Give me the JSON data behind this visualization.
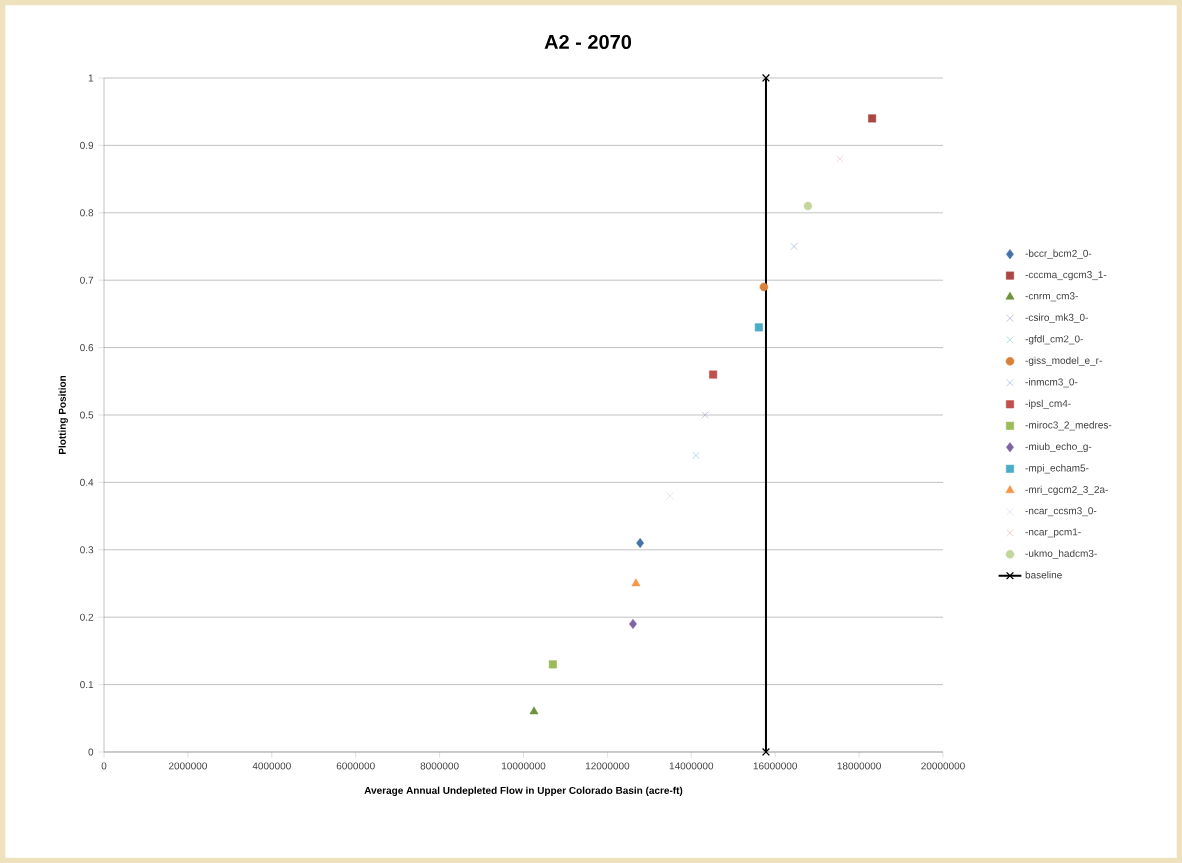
{
  "chart_data": {
    "type": "scatter",
    "title": "A2 - 2070",
    "xlabel": "Average Annual Undepleted Flow in Upper Colorado Basin (acre-ft)",
    "ylabel": "Plotting Position",
    "xlim": [
      0,
      20000000
    ],
    "xticks": [
      0,
      2000000,
      4000000,
      6000000,
      8000000,
      10000000,
      12000000,
      14000000,
      16000000,
      18000000,
      20000000
    ],
    "ylim": [
      0,
      1
    ],
    "yticks": [
      0,
      0.1,
      0.2,
      0.3,
      0.4,
      0.5,
      0.6,
      0.7,
      0.8,
      0.9,
      1
    ],
    "grid": "y",
    "legend": "right",
    "series": [
      {
        "name": "-bccr_bcm2_0-",
        "color": "#4572a7",
        "marker": "diamond",
        "x": [
          12780000
        ],
        "values": [
          0.31
        ]
      },
      {
        "name": "-cccma_cgcm3_1-",
        "color": "#aa4643",
        "marker": "square",
        "x": [
          18310000
        ],
        "values": [
          0.94
        ]
      },
      {
        "name": "-cnrm_cm3-",
        "color": "#71913c",
        "marker": "triangle",
        "x": [
          10250000
        ],
        "values": [
          0.06
        ]
      },
      {
        "name": "-csiro_mk3_0-",
        "color": "#9d8fbf",
        "marker": "cross",
        "x": [
          14330000
        ],
        "values": [
          0.5
        ]
      },
      {
        "name": "-gfdl_cm2_0-",
        "color": "#6fb6cb",
        "marker": "cross",
        "x": [
          14110000
        ],
        "values": [
          0.44
        ]
      },
      {
        "name": "-giss_model_e_r-",
        "color": "#d9803a",
        "marker": "circle",
        "x": [
          15730000
        ],
        "values": [
          0.69
        ]
      },
      {
        "name": "-inmcm3_0-",
        "color": "#7f9fd6",
        "marker": "cross",
        "x": [
          16450000
        ],
        "values": [
          0.75
        ]
      },
      {
        "name": "-ipsl_cm4-",
        "color": "#c0504d",
        "marker": "square",
        "x": [
          14520000
        ],
        "values": [
          0.56
        ]
      },
      {
        "name": "-miroc3_2_medres-",
        "color": "#9bbb59",
        "marker": "square",
        "x": [
          10700000
        ],
        "values": [
          0.13
        ]
      },
      {
        "name": "-miub_echo_g-",
        "color": "#8064a2",
        "marker": "diamond",
        "x": [
          12610000
        ],
        "values": [
          0.19
        ]
      },
      {
        "name": "-mpi_echam5-",
        "color": "#4bacc6",
        "marker": "square",
        "x": [
          15610000
        ],
        "values": [
          0.63
        ]
      },
      {
        "name": "-mri_cgcm2_3_2a-",
        "color": "#f79646",
        "marker": "triangle",
        "x": [
          12680000
        ],
        "values": [
          0.25
        ]
      },
      {
        "name": "-ncar_ccsm3_0-",
        "color": "#c6d3ee",
        "marker": "cross",
        "x": [
          13490000
        ],
        "values": [
          0.38
        ]
      },
      {
        "name": "-ncar_pcm1-",
        "color": "#e6b0b0",
        "marker": "cross",
        "x": [
          17540000
        ],
        "values": [
          0.88
        ]
      },
      {
        "name": "-ukmo_hadcm3-",
        "color": "#c3d69b",
        "marker": "circle",
        "x": [
          16780000
        ],
        "values": [
          0.81
        ]
      },
      {
        "name": "baseline",
        "type": "line",
        "color": "#000000",
        "marker": "cross",
        "x": [
          15780000,
          15780000
        ],
        "values": [
          0,
          1
        ]
      }
    ]
  }
}
